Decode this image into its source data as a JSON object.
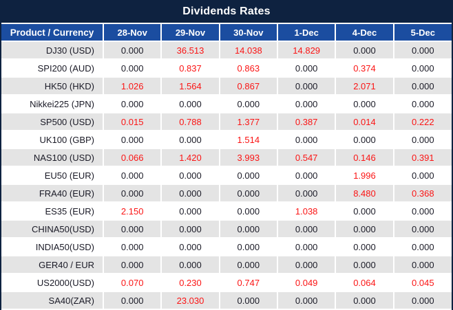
{
  "title": "Dividends Rates",
  "table": {
    "product_header": "Product / Currency",
    "date_headers": [
      "28-Nov",
      "29-Nov",
      "30-Nov",
      "1-Dec",
      "4-Dec",
      "5-Dec"
    ],
    "rows": [
      {
        "product": "DJ30 (USD)",
        "values": [
          "0.000",
          "36.513",
          "14.038",
          "14.829",
          "0.000",
          "0.000"
        ]
      },
      {
        "product": "SPI200 (AUD)",
        "values": [
          "0.000",
          "0.837",
          "0.863",
          "0.000",
          "0.374",
          "0.000"
        ]
      },
      {
        "product": "HK50 (HKD)",
        "values": [
          "1.026",
          "1.564",
          "0.867",
          "0.000",
          "2.071",
          "0.000"
        ]
      },
      {
        "product": "Nikkei225 (JPN)",
        "values": [
          "0.000",
          "0.000",
          "0.000",
          "0.000",
          "0.000",
          "0.000"
        ]
      },
      {
        "product": "SP500 (USD)",
        "values": [
          "0.015",
          "0.788",
          "1.377",
          "0.387",
          "0.014",
          "0.222"
        ]
      },
      {
        "product": "UK100 (GBP)",
        "values": [
          "0.000",
          "0.000",
          "1.514",
          "0.000",
          "0.000",
          "0.000"
        ]
      },
      {
        "product": "NAS100 (USD)",
        "values": [
          "0.066",
          "1.420",
          "3.993",
          "0.547",
          "0.146",
          "0.391"
        ]
      },
      {
        "product": "EU50 (EUR)",
        "values": [
          "0.000",
          "0.000",
          "0.000",
          "0.000",
          "1.996",
          "0.000"
        ]
      },
      {
        "product": "FRA40 (EUR)",
        "values": [
          "0.000",
          "0.000",
          "0.000",
          "0.000",
          "8.480",
          "0.368"
        ]
      },
      {
        "product": "ES35 (EUR)",
        "values": [
          "2.150",
          "0.000",
          "0.000",
          "1.038",
          "0.000",
          "0.000"
        ]
      },
      {
        "product": "CHINA50(USD)",
        "values": [
          "0.000",
          "0.000",
          "0.000",
          "0.000",
          "0.000",
          "0.000"
        ]
      },
      {
        "product": "INDIA50(USD)",
        "values": [
          "0.000",
          "0.000",
          "0.000",
          "0.000",
          "0.000",
          "0.000"
        ]
      },
      {
        "product": "GER40 / EUR",
        "values": [
          "0.000",
          "0.000",
          "0.000",
          "0.000",
          "0.000",
          "0.000"
        ]
      },
      {
        "product": "US2000(USD)",
        "values": [
          "0.070",
          "0.230",
          "0.747",
          "0.049",
          "0.064",
          "0.045"
        ]
      },
      {
        "product": "SA40(ZAR)",
        "values": [
          "0.000",
          "23.030",
          "0.000",
          "0.000",
          "0.000",
          "0.000"
        ]
      }
    ]
  },
  "colors": {
    "title_bar_bg": "#0e2240",
    "header_bg": "#1b4da0",
    "row_bg": "#ffffff",
    "row_alt_bg": "#e4e4e4",
    "separator": "#ffffff",
    "positive_value_text": "#fb1414",
    "zero_value_text": "#1a1a26",
    "header_text": "#ffffff"
  }
}
